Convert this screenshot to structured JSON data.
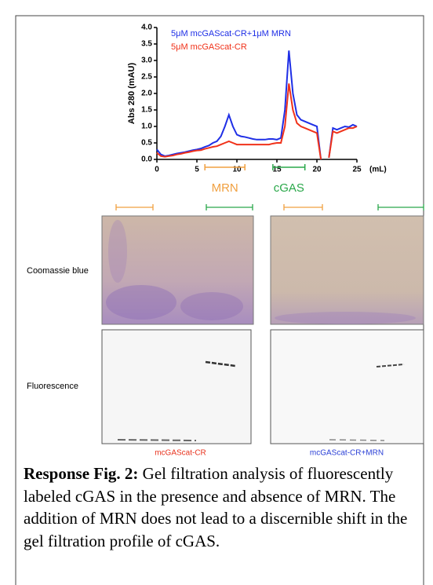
{
  "chart_data": {
    "type": "line",
    "ylabel": "Abs 280 (mAU)",
    "xlabel": "(mL)",
    "x": [
      0,
      0.5,
      1,
      1.5,
      2,
      2.5,
      3,
      3.5,
      4,
      4.5,
      5,
      5.5,
      6,
      6.5,
      7,
      7.5,
      8,
      8.5,
      9,
      9.5,
      10,
      10.5,
      11,
      11.5,
      12,
      12.5,
      13,
      13.5,
      14,
      14.5,
      15,
      15.5,
      16,
      16.5,
      17,
      17.5,
      18,
      18.5,
      19,
      19.5,
      20,
      20.5,
      21,
      21.5,
      22,
      22.5,
      23,
      23.5,
      24,
      24.5,
      25
    ],
    "series": [
      {
        "name": "5μM  mcGAScat-CR+1μM MRN",
        "color": "#1f2fe6",
        "values": [
          0.3,
          0.15,
          0.1,
          0.12,
          0.15,
          0.18,
          0.2,
          0.22,
          0.25,
          0.28,
          0.3,
          0.33,
          0.38,
          0.42,
          0.5,
          0.55,
          0.7,
          1.0,
          1.35,
          1.0,
          0.75,
          0.7,
          0.68,
          0.65,
          0.62,
          0.6,
          0.6,
          0.6,
          0.62,
          0.62,
          0.6,
          0.65,
          1.5,
          3.3,
          2.0,
          1.35,
          1.2,
          1.15,
          1.1,
          1.05,
          1.0,
          0.0,
          null,
          0.05,
          0.95,
          0.9,
          0.95,
          1.0,
          0.98,
          1.05,
          1.0
        ]
      },
      {
        "name": "5μM mcGAScat-CR",
        "color": "#f0321a",
        "values": [
          0.2,
          0.1,
          0.08,
          0.1,
          0.12,
          0.15,
          0.17,
          0.2,
          0.22,
          0.25,
          0.27,
          0.28,
          0.32,
          0.35,
          0.38,
          0.4,
          0.45,
          0.5,
          0.55,
          0.5,
          0.45,
          0.45,
          0.45,
          0.45,
          0.45,
          0.45,
          0.45,
          0.45,
          0.45,
          0.48,
          0.5,
          0.5,
          1.0,
          2.3,
          1.5,
          1.1,
          1.0,
          0.95,
          0.9,
          0.85,
          0.8,
          0.0,
          null,
          0.05,
          0.85,
          0.8,
          0.85,
          0.9,
          0.95,
          0.95,
          1.0
        ]
      }
    ],
    "xlim": [
      0,
      25
    ],
    "xticks": [
      0,
      5,
      10,
      15,
      20,
      25
    ],
    "ylim": [
      0,
      4
    ],
    "yticks": [
      {
        "value": 0,
        "label": "0.0"
      },
      {
        "value": 0.5,
        "label": "0.5"
      },
      {
        "value": 1,
        "label": "1.0"
      },
      {
        "value": 1.5,
        "label": "1.5"
      },
      {
        "value": 2,
        "label": "2.0"
      },
      {
        "value": 2.5,
        "label": "2.5"
      },
      {
        "value": 3,
        "label": "3.0"
      },
      {
        "value": 3.5,
        "label": "3.5"
      },
      {
        "value": 4,
        "label": "4.0"
      }
    ],
    "annotations": [
      {
        "label": "MRN",
        "x": [
          6,
          11
        ],
        "color": "#f0a040"
      },
      {
        "label": "cGAS",
        "x": [
          14.5,
          18.5
        ],
        "color": "#2aa84a"
      }
    ]
  },
  "gel": {
    "row_labels": [
      "Coomassie blue",
      "Fluorescence"
    ],
    "column_labels": [
      "mcGAScat-CR",
      "mcGAScat-CR+MRN"
    ]
  },
  "caption": {
    "label": "Response Fig. 2:",
    "text": "Gel filtration analysis of fluorescently labeled cGAS in the presence and absence of MRN.  The addition of MRN does not lead to a discernible shift in the gel filtration profile of cGAS."
  }
}
